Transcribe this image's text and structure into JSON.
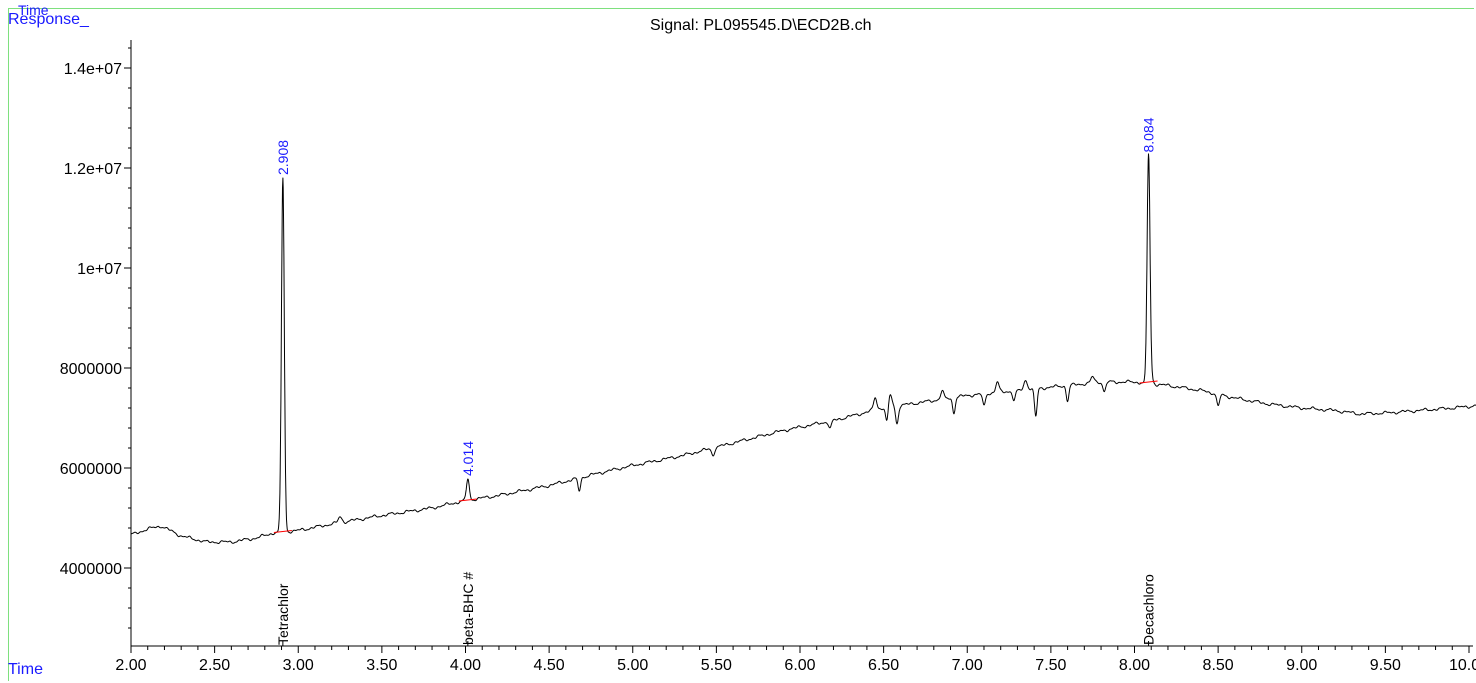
{
  "header": {
    "top_label": "Time",
    "response_label": "Response_",
    "time_label": "Time",
    "signal_title": "Signal: PL095545.D\\ECD2B.ch"
  },
  "chart_data": {
    "type": "line",
    "title": "Signal: PL095545.D\\ECD2B.ch",
    "xlabel": "Time",
    "ylabel": "Response_",
    "xlim": [
      2.0,
      10.15
    ],
    "ylim": [
      2400000,
      14600000
    ],
    "x_ticks": [
      2.0,
      2.5,
      3.0,
      3.5,
      4.0,
      4.5,
      5.0,
      5.5,
      6.0,
      6.5,
      7.0,
      7.5,
      8.0,
      8.5,
      9.0,
      9.5,
      10.0
    ],
    "x_tick_labels": [
      "2.00",
      "2.50",
      "3.00",
      "3.50",
      "4.00",
      "4.50",
      "5.00",
      "5.50",
      "6.00",
      "6.50",
      "7.00",
      "7.50",
      "8.00",
      "8.50",
      "9.00",
      "9.50",
      "10.00"
    ],
    "y_ticks": [
      4000000,
      6000000,
      8000000,
      10000000,
      12000000,
      14000000
    ],
    "y_tick_labels": [
      "4000000",
      "6000000",
      "8000000",
      "1e+07",
      "1.2e+07",
      "1.4e+07"
    ],
    "colors": {
      "trace": "#000000",
      "peak_label": "#1a1aff",
      "baseline": "#ff0000",
      "frame": "#7ee07e"
    },
    "baseline_points": [
      [
        2.0,
        4660000
      ],
      [
        2.1,
        4780000
      ],
      [
        2.18,
        4840000
      ],
      [
        2.3,
        4640000
      ],
      [
        2.45,
        4520000
      ],
      [
        2.6,
        4520000
      ],
      [
        2.75,
        4600000
      ],
      [
        2.85,
        4700000
      ],
      [
        3.0,
        4750000
      ],
      [
        3.2,
        4880000
      ],
      [
        3.5,
        5050000
      ],
      [
        3.8,
        5200000
      ],
      [
        4.0,
        5350000
      ],
      [
        4.2,
        5450000
      ],
      [
        4.5,
        5650000
      ],
      [
        4.8,
        5900000
      ],
      [
        5.0,
        6050000
      ],
      [
        5.3,
        6250000
      ],
      [
        5.6,
        6500000
      ],
      [
        5.9,
        6750000
      ],
      [
        6.2,
        6950000
      ],
      [
        6.5,
        7200000
      ],
      [
        6.8,
        7350000
      ],
      [
        7.0,
        7450000
      ],
      [
        7.3,
        7550000
      ],
      [
        7.6,
        7650000
      ],
      [
        7.8,
        7720000
      ],
      [
        8.0,
        7720000
      ],
      [
        8.2,
        7650000
      ],
      [
        8.4,
        7550000
      ],
      [
        8.6,
        7400000
      ],
      [
        8.8,
        7280000
      ],
      [
        9.0,
        7200000
      ],
      [
        9.2,
        7150000
      ],
      [
        9.35,
        7080000
      ],
      [
        9.5,
        7100000
      ],
      [
        9.7,
        7150000
      ],
      [
        9.9,
        7200000
      ],
      [
        10.15,
        7280000
      ]
    ],
    "dips": [
      {
        "x": 4.68,
        "depth": 250000
      },
      {
        "x": 5.48,
        "depth": 150000
      },
      {
        "x": 6.18,
        "depth": 150000
      },
      {
        "x": 6.52,
        "depth": 300000
      },
      {
        "x": 6.58,
        "depth": 350000
      },
      {
        "x": 6.92,
        "depth": 300000
      },
      {
        "x": 7.1,
        "depth": 250000
      },
      {
        "x": 7.28,
        "depth": 200000
      },
      {
        "x": 7.41,
        "depth": 550000
      },
      {
        "x": 7.6,
        "depth": 300000
      },
      {
        "x": 7.82,
        "depth": 200000
      },
      {
        "x": 8.5,
        "depth": 250000
      }
    ],
    "bumps": [
      {
        "x": 3.25,
        "height": 120000
      },
      {
        "x": 6.45,
        "height": 250000
      },
      {
        "x": 6.54,
        "height": 250000
      },
      {
        "x": 6.85,
        "height": 150000
      },
      {
        "x": 7.18,
        "height": 200000
      },
      {
        "x": 7.35,
        "height": 200000
      },
      {
        "x": 7.75,
        "height": 120000
      },
      {
        "x": 8.1,
        "height": 120000
      }
    ],
    "peaks": [
      {
        "rt": 2.908,
        "rt_label": "2.908",
        "apex": 11800000,
        "base": 4730000,
        "compound": "Tetrachlor"
      },
      {
        "rt": 4.014,
        "rt_label": "4.014",
        "apex": 5780000,
        "base": 5360000,
        "compound": "beta-BHC #"
      },
      {
        "rt": 8.084,
        "rt_label": "8.084",
        "apex": 12250000,
        "base": 7720000,
        "compound": "Decachloro"
      }
    ]
  }
}
